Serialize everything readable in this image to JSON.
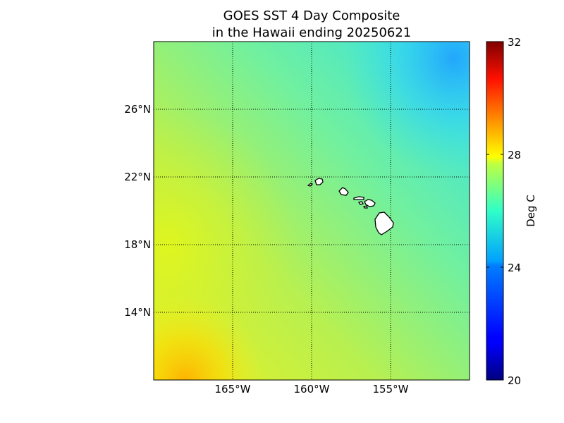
{
  "title_line1": "GOES SST 4 Day Composite",
  "title_line2": "in the Hawaii ending 20250621",
  "map": {
    "lon_range": [
      -170,
      -150
    ],
    "lat_range": [
      10,
      30
    ],
    "lon_ticks": [
      {
        "value": -165,
        "label": "165°W"
      },
      {
        "value": -160,
        "label": "160°W"
      },
      {
        "value": -155,
        "label": "155°W"
      }
    ],
    "lat_ticks": [
      {
        "value": 26,
        "label": "26°N"
      },
      {
        "value": 22,
        "label": "22°N"
      },
      {
        "value": 18,
        "label": "18°N"
      },
      {
        "value": 14,
        "label": "14°N"
      }
    ],
    "gridlines": "dotted"
  },
  "colorbar": {
    "label": "Deg C",
    "min": 20,
    "max": 32,
    "ticks": [
      {
        "value": 32,
        "label": "32"
      },
      {
        "value": 28,
        "label": "28"
      },
      {
        "value": 24,
        "label": "24"
      },
      {
        "value": 20,
        "label": "20"
      }
    ],
    "colormap": "jet"
  },
  "colors": {
    "sst_dominant": "#a8f060",
    "warm_southwest": "#f0e820",
    "cool_northeast": "#30d8f0",
    "land": "#ffffff",
    "coastline": "#000000"
  }
}
